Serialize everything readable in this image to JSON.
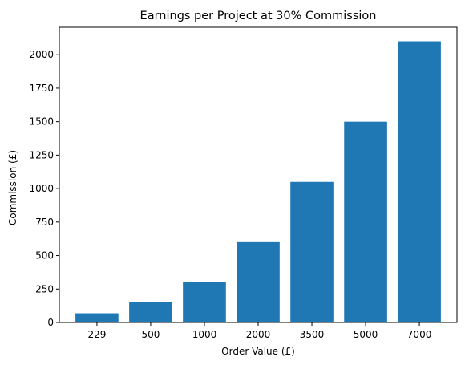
{
  "chart_data": {
    "type": "bar",
    "title": "Earnings per Project at 30% Commission",
    "xlabel": "Order Value (£)",
    "ylabel": "Commission (£)",
    "categories": [
      "229",
      "500",
      "1000",
      "2000",
      "3500",
      "5000",
      "7000"
    ],
    "values": [
      68.7,
      150,
      300,
      600,
      1050,
      1500,
      2100
    ],
    "ylim": [
      0,
      2205
    ],
    "yticks": [
      0,
      250,
      500,
      750,
      1000,
      1250,
      1500,
      1750,
      2000
    ],
    "grid": false,
    "bar_color": "#1f77b4"
  }
}
